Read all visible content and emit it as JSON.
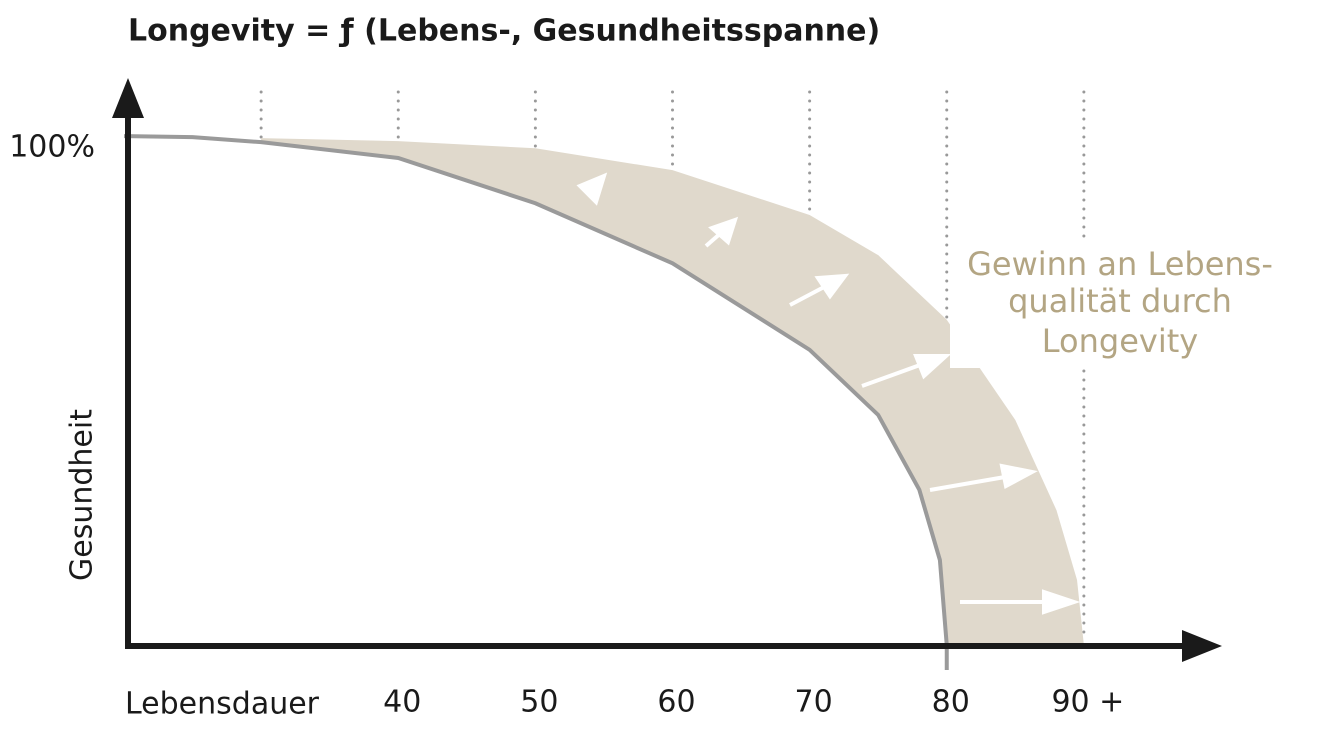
{
  "chart_data": {
    "type": "area",
    "title": "Longevity = ƒ (Lebens-, Gesundheitsspanne)",
    "x_label": "Lebensdauer",
    "y_label": "Gesundheit",
    "annotation": [
      "Gewinn an Lebens-",
      "qualität durch",
      "Longevity"
    ],
    "xlim": [
      20,
      100
    ],
    "ylim": [
      0,
      112
    ],
    "xticks": [
      {
        "value": 30,
        "label": null
      },
      40,
      50,
      60,
      70,
      80,
      {
        "value": 90,
        "label": "90 +"
      }
    ],
    "yticks": [
      {
        "value": 100,
        "label": "100%"
      }
    ],
    "grid": true,
    "series": [
      {
        "color": "#e0d9cc",
        "x": [
          30,
          40,
          50,
          60,
          70,
          75,
          80,
          85,
          88,
          89.5,
          90
        ],
        "values": [
          99.6,
          99,
          97.6,
          93.3,
          84.5,
          76.6,
          63.9,
          44.2,
          26.5,
          12.8,
          0
        ]
      },
      {
        "color": "#9a9a9a",
        "x": [
          20,
          25,
          30,
          40,
          50,
          60,
          70,
          75,
          78,
          79.5,
          80
        ],
        "values": [
          100,
          99.8,
          98.8,
          95.7,
          86.8,
          75,
          58,
          45.2,
          30.5,
          16.7,
          0
        ]
      }
    ]
  }
}
